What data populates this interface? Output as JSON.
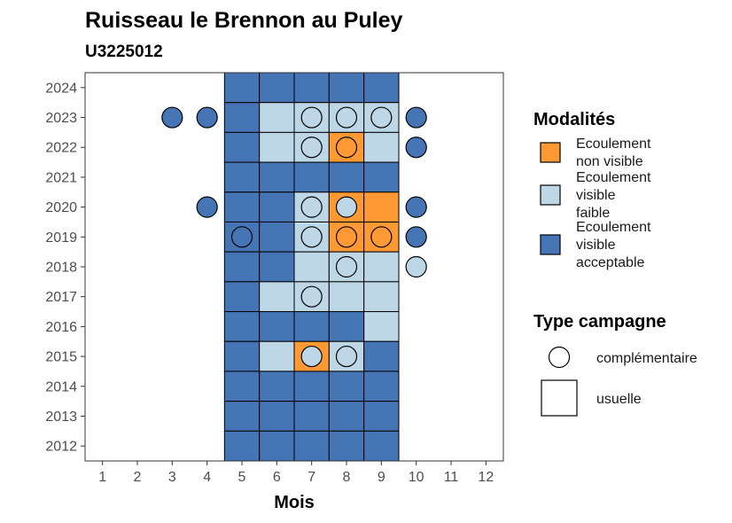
{
  "chart_data": {
    "type": "heatmap",
    "title": "Ruisseau le Brennon au Puley",
    "subtitle": "U3225012",
    "xlabel": "Mois",
    "ylabel": "",
    "x_ticks": [
      1,
      2,
      3,
      4,
      5,
      6,
      7,
      8,
      9,
      10,
      11,
      12
    ],
    "y_ticks": [
      2012,
      2013,
      2014,
      2015,
      2016,
      2017,
      2018,
      2019,
      2020,
      2021,
      2022,
      2023,
      2024
    ],
    "xlim": [
      0.5,
      12.5
    ],
    "ylim": [
      2011.5,
      2024.5
    ],
    "grid": false,
    "legend_position": "right",
    "colors": {
      "non_visible": "#FF9933",
      "faible": "#BDD7E7",
      "acceptable": "#4575B4"
    },
    "legend_modalites": {
      "title": "Modalités",
      "entries": [
        {
          "key": "non_visible",
          "lines": [
            "Ecoulement",
            "non visible"
          ]
        },
        {
          "key": "faible",
          "lines": [
            "Ecoulement",
            "visible",
            "faible"
          ]
        },
        {
          "key": "acceptable",
          "lines": [
            "Ecoulement",
            "visible",
            "acceptable"
          ]
        }
      ]
    },
    "legend_campagne": {
      "title": "Type campagne",
      "entries": [
        {
          "shape": "circle",
          "label": "complémentaire"
        },
        {
          "shape": "square",
          "label": "usuelle"
        }
      ]
    },
    "usuelle": [
      {
        "year": 2024,
        "values": {
          "5": "acceptable",
          "6": "acceptable",
          "7": "acceptable",
          "8": "acceptable",
          "9": "acceptable"
        }
      },
      {
        "year": 2023,
        "values": {
          "5": "acceptable",
          "6": "faible",
          "7": "faible",
          "8": "faible",
          "9": "faible"
        }
      },
      {
        "year": 2022,
        "values": {
          "5": "acceptable",
          "6": "faible",
          "7": "faible",
          "8": "non_visible",
          "9": "faible"
        }
      },
      {
        "year": 2021,
        "values": {
          "5": "acceptable",
          "6": "acceptable",
          "7": "acceptable",
          "8": "acceptable",
          "9": "acceptable"
        }
      },
      {
        "year": 2020,
        "values": {
          "5": "acceptable",
          "6": "acceptable",
          "7": "faible",
          "8": "non_visible",
          "9": "non_visible"
        }
      },
      {
        "year": 2019,
        "values": {
          "5": "acceptable",
          "6": "acceptable",
          "7": "faible",
          "8": "non_visible",
          "9": "non_visible"
        }
      },
      {
        "year": 2018,
        "values": {
          "5": "acceptable",
          "6": "acceptable",
          "7": "faible",
          "8": "faible",
          "9": "faible"
        }
      },
      {
        "year": 2017,
        "values": {
          "5": "acceptable",
          "6": "faible",
          "7": "faible",
          "8": "faible",
          "9": "faible"
        }
      },
      {
        "year": 2016,
        "values": {
          "5": "acceptable",
          "6": "acceptable",
          "7": "acceptable",
          "8": "acceptable",
          "9": "faible"
        }
      },
      {
        "year": 2015,
        "values": {
          "5": "acceptable",
          "6": "faible",
          "7": "non_visible",
          "8": "faible",
          "9": "acceptable"
        }
      },
      {
        "year": 2014,
        "values": {
          "5": "acceptable",
          "6": "acceptable",
          "7": "acceptable",
          "8": "acceptable",
          "9": "acceptable"
        }
      },
      {
        "year": 2013,
        "values": {
          "5": "acceptable",
          "6": "acceptable",
          "7": "acceptable",
          "8": "acceptable",
          "9": "acceptable"
        }
      },
      {
        "year": 2012,
        "values": {
          "5": "acceptable",
          "6": "acceptable",
          "7": "acceptable",
          "8": "acceptable",
          "9": "acceptable"
        }
      }
    ],
    "complementaire": [
      {
        "year": 2023,
        "month": 3,
        "value": "acceptable"
      },
      {
        "year": 2023,
        "month": 4,
        "value": "acceptable"
      },
      {
        "year": 2023,
        "month": 7,
        "value": "faible"
      },
      {
        "year": 2023,
        "month": 8,
        "value": "faible"
      },
      {
        "year": 2023,
        "month": 9,
        "value": "faible"
      },
      {
        "year": 2023,
        "month": 10,
        "value": "acceptable"
      },
      {
        "year": 2022,
        "month": 7,
        "value": "faible"
      },
      {
        "year": 2022,
        "month": 8,
        "value": "non_visible"
      },
      {
        "year": 2022,
        "month": 10,
        "value": "acceptable"
      },
      {
        "year": 2020,
        "month": 4,
        "value": "acceptable"
      },
      {
        "year": 2020,
        "month": 7,
        "value": "faible"
      },
      {
        "year": 2020,
        "month": 8,
        "value": "faible"
      },
      {
        "year": 2020,
        "month": 10,
        "value": "acceptable"
      },
      {
        "year": 2019,
        "month": 5,
        "value": "acceptable"
      },
      {
        "year": 2019,
        "month": 7,
        "value": "faible"
      },
      {
        "year": 2019,
        "month": 8,
        "value": "non_visible"
      },
      {
        "year": 2019,
        "month": 9,
        "value": "non_visible"
      },
      {
        "year": 2019,
        "month": 10,
        "value": "acceptable"
      },
      {
        "year": 2018,
        "month": 8,
        "value": "faible"
      },
      {
        "year": 2018,
        "month": 10,
        "value": "faible"
      },
      {
        "year": 2017,
        "month": 7,
        "value": "faible"
      },
      {
        "year": 2015,
        "month": 7,
        "value": "faible"
      },
      {
        "year": 2015,
        "month": 8,
        "value": "faible"
      }
    ]
  }
}
